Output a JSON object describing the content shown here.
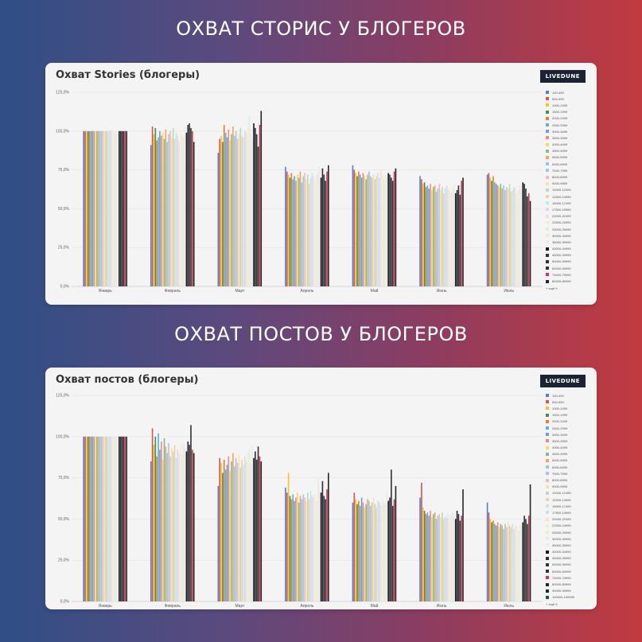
{
  "headings": {
    "stories": "ОХВАТ СТОРИС У БЛОГЕРОВ",
    "posts": "ОХВАТ ПОСТОВ У БЛОГЕРОВ"
  },
  "brand": "LIVEDUNE",
  "chart_data": [
    {
      "type": "bar",
      "title": "Охват Stories (блогеры)",
      "categories": [
        "Январь",
        "Февраль",
        "Март",
        "Апрель",
        "Май",
        "Июнь",
        "Июль"
      ],
      "y_ticks": [
        "0,0%",
        "25,0%",
        "50,0%",
        "75,0%",
        "100,0%",
        "125,0%"
      ],
      "ylim": [
        0,
        125
      ],
      "grid": true,
      "legend_position": "right",
      "legend_more": "+ ещё 9",
      "legend": [
        {
          "name": "100-499",
          "color": "#4e7fd0"
        },
        {
          "name": "500-999",
          "color": "#d9534f"
        },
        {
          "name": "1000-1499",
          "color": "#f2c230"
        },
        {
          "name": "1500-1999",
          "color": "#3f8f5a"
        },
        {
          "name": "2000-2499",
          "color": "#ef7d2d"
        },
        {
          "name": "2500-2999",
          "color": "#5ab4d6"
        },
        {
          "name": "3000-3499",
          "color": "#6f9fd8"
        },
        {
          "name": "3500-3999",
          "color": "#e98b8b"
        },
        {
          "name": "4000-4499",
          "color": "#f5d76e"
        },
        {
          "name": "4500-4999",
          "color": "#7cbf8e"
        },
        {
          "name": "5000-5999",
          "color": "#f4a460"
        },
        {
          "name": "6000-6999",
          "color": "#8ecae6"
        },
        {
          "name": "7000-7999",
          "color": "#a9c4ec"
        },
        {
          "name": "8000-8999",
          "color": "#f3b8b8"
        },
        {
          "name": "9000-9999",
          "color": "#f7e3a1"
        },
        {
          "name": "10000-12499",
          "color": "#b7dcc2"
        },
        {
          "name": "12500-14999",
          "color": "#f8cfa8"
        },
        {
          "name": "15000-17499",
          "color": "#c7e5f0"
        },
        {
          "name": "17500-19999",
          "color": "#cfdcf2"
        },
        {
          "name": "20000-22499",
          "color": "#f4dede"
        },
        {
          "name": "22500-24999",
          "color": "#f6edd0"
        },
        {
          "name": "25000-29999",
          "color": "#dfeee3"
        },
        {
          "name": "30000-34999",
          "color": "#f5e6d6"
        },
        {
          "name": "35000-39999",
          "color": "#e6eef3"
        },
        {
          "name": "40000-44999",
          "color": "#1b1b1b"
        },
        {
          "name": "45000-49999",
          "color": "#2a2f3a"
        },
        {
          "name": "50000-59999",
          "color": "#333333"
        },
        {
          "name": "60000-69999",
          "color": "#3b3030"
        },
        {
          "name": "70000-79999",
          "color": "#c9385a"
        },
        {
          "name": "80000-89999",
          "color": "#262626"
        }
      ],
      "series_values": [
        [
          100,
          100,
          100,
          100,
          100,
          100,
          100,
          100,
          100,
          100,
          100,
          100,
          100,
          100,
          100,
          100,
          100,
          100,
          100,
          100,
          100,
          100,
          100,
          100,
          100,
          100,
          100,
          100,
          100,
          100
        ],
        [
          91,
          103,
          98,
          102,
          94,
          96,
          100,
          97,
          99,
          95,
          101,
          93,
          98,
          100,
          96,
          102,
          95,
          99,
          97,
          94,
          101,
          98,
          96,
          103,
          99,
          104,
          105,
          102,
          100,
          93
        ],
        [
          86,
          95,
          97,
          93,
          104,
          99,
          96,
          101,
          94,
          98,
          103,
          97,
          100,
          95,
          98,
          102,
          97,
          96,
          100,
          99,
          103,
          110,
          99,
          96,
          105,
          102,
          98,
          90,
          104,
          113
        ],
        [
          77,
          74,
          72,
          70,
          73,
          69,
          71,
          68,
          72,
          70,
          74,
          67,
          71,
          73,
          69,
          72,
          66,
          70,
          73,
          71,
          68,
          72,
          74,
          77,
          70,
          76,
          72,
          68,
          74,
          78
        ],
        [
          78,
          75,
          73,
          71,
          74,
          72,
          70,
          73,
          71,
          69,
          72,
          74,
          71,
          70,
          72,
          69,
          71,
          73,
          70,
          75,
          72,
          69,
          71,
          70,
          73,
          72,
          70,
          68,
          74,
          76
        ],
        [
          71,
          69,
          66,
          67,
          64,
          65,
          63,
          66,
          62,
          64,
          65,
          61,
          63,
          66,
          62,
          64,
          60,
          63,
          65,
          62,
          64,
          61,
          63,
          66,
          60,
          62,
          65,
          59,
          68,
          70
        ],
        [
          72,
          73,
          70,
          68,
          71,
          67,
          66,
          65,
          64,
          66,
          63,
          65,
          62,
          64,
          63,
          66,
          61,
          62,
          64,
          63,
          60,
          62,
          65,
          61,
          67,
          66,
          63,
          58,
          60,
          55
        ]
      ]
    },
    {
      "type": "bar",
      "title": "Охват постов (блогеры)",
      "categories": [
        "Январь",
        "Февраль",
        "Март",
        "Апрель",
        "Май",
        "Июнь",
        "Июль"
      ],
      "y_ticks": [
        "0,0%",
        "25,0%",
        "50,0%",
        "75,0%",
        "100,0%",
        "125,0%"
      ],
      "ylim": [
        0,
        125
      ],
      "grid": true,
      "legend_position": "right",
      "legend_more": "+ ещё 9",
      "legend": [
        {
          "name": "100-499",
          "color": "#4e7fd0"
        },
        {
          "name": "500-999",
          "color": "#d9534f"
        },
        {
          "name": "1000-1499",
          "color": "#f2c230"
        },
        {
          "name": "1500-1999",
          "color": "#3f8f5a"
        },
        {
          "name": "2000-2499",
          "color": "#ef7d2d"
        },
        {
          "name": "2500-2999",
          "color": "#5ab4d6"
        },
        {
          "name": "3000-3499",
          "color": "#6f9fd8"
        },
        {
          "name": "3500-3999",
          "color": "#e98b8b"
        },
        {
          "name": "4000-4499",
          "color": "#f5d76e"
        },
        {
          "name": "4500-4999",
          "color": "#7cbf8e"
        },
        {
          "name": "5000-5999",
          "color": "#f4a460"
        },
        {
          "name": "6000-6999",
          "color": "#8ecae6"
        },
        {
          "name": "7000-7999",
          "color": "#a9c4ec"
        },
        {
          "name": "8000-8999",
          "color": "#f3b8b8"
        },
        {
          "name": "9000-9999",
          "color": "#f7e3a1"
        },
        {
          "name": "10000-12499",
          "color": "#b7dcc2"
        },
        {
          "name": "12500-14999",
          "color": "#f8cfa8"
        },
        {
          "name": "15000-17499",
          "color": "#c7e5f0"
        },
        {
          "name": "17500-19999",
          "color": "#cfdcf2"
        },
        {
          "name": "20000-22499",
          "color": "#f4dede"
        },
        {
          "name": "22500-24999",
          "color": "#f6edd0"
        },
        {
          "name": "25000-29999",
          "color": "#dfeee3"
        },
        {
          "name": "30000-34999",
          "color": "#f5e6d6"
        },
        {
          "name": "35000-39999",
          "color": "#e6eef3"
        },
        {
          "name": "40000-44999",
          "color": "#1b1b1b"
        },
        {
          "name": "45000-49999",
          "color": "#2a2f3a"
        },
        {
          "name": "50000-59999",
          "color": "#333333"
        },
        {
          "name": "60000-69999",
          "color": "#3b3030"
        },
        {
          "name": "70000-79999",
          "color": "#c9385a"
        },
        {
          "name": "80000-89999",
          "color": "#262626"
        },
        {
          "name": "90000-99999",
          "color": "#1f2a24"
        },
        {
          "name": "100000-199999",
          "color": "#2e4a3a"
        }
      ],
      "series_values": [
        [
          100,
          100,
          100,
          100,
          100,
          100,
          100,
          100,
          100,
          100,
          100,
          100,
          100,
          100,
          100,
          100,
          100,
          100,
          100,
          100,
          100,
          100,
          100,
          100,
          100,
          100,
          100,
          100,
          100,
          100
        ],
        [
          85,
          105,
          95,
          100,
          88,
          102,
          92,
          97,
          86,
          99,
          94,
          90,
          96,
          88,
          93,
          91,
          95,
          87,
          92,
          90,
          94,
          89,
          96,
          93,
          91,
          97,
          95,
          107,
          92,
          90
        ],
        [
          70,
          87,
          84,
          78,
          86,
          80,
          83,
          88,
          79,
          85,
          90,
          82,
          87,
          84,
          89,
          81,
          86,
          83,
          88,
          85,
          90,
          92,
          84,
          95,
          87,
          91,
          86,
          94,
          88,
          85
        ],
        [
          69,
          66,
          78,
          64,
          62,
          65,
          61,
          63,
          66,
          60,
          64,
          62,
          65,
          63,
          61,
          66,
          62,
          67,
          64,
          63,
          65,
          61,
          74,
          70,
          66,
          73,
          64,
          62,
          68,
          78
        ],
        [
          60,
          66,
          62,
          59,
          61,
          58,
          63,
          60,
          57,
          59,
          62,
          61,
          58,
          60,
          63,
          59,
          57,
          61,
          60,
          58,
          62,
          60,
          59,
          68,
          61,
          63,
          80,
          58,
          62,
          70
        ],
        [
          63,
          72,
          57,
          55,
          53,
          54,
          52,
          55,
          51,
          53,
          54,
          50,
          52,
          53,
          51,
          54,
          50,
          52,
          51,
          53,
          49,
          52,
          54,
          51,
          50,
          55,
          53,
          49,
          52,
          68
        ],
        [
          60,
          54,
          50,
          48,
          49,
          47,
          46,
          48,
          45,
          47,
          46,
          44,
          47,
          45,
          48,
          46,
          45,
          47,
          44,
          46,
          45,
          43,
          46,
          47,
          48,
          52,
          50,
          47,
          52,
          71
        ]
      ]
    }
  ]
}
